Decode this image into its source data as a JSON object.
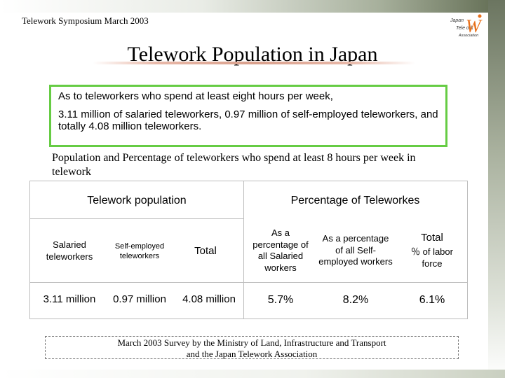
{
  "header": {
    "event": "Telework  Symposium  March 2003"
  },
  "logo": {
    "line1": "Japan",
    "line2": "Tele   ork",
    "line3": "Association",
    "letter": "W"
  },
  "title": "Telework Population in Japan",
  "summary": {
    "line1": "As to teleworkers who spend at least eight hours per week,",
    "line2": "3.11 million of salaried teleworkers, 0.97 million of self-employed teleworkers, and totally 4.08 million teleworkers."
  },
  "subtitle": "Population and Percentage of teleworkers who spend at least 8 hours per week in telework",
  "table": {
    "group_headers": [
      "Telework population",
      "Percentage of Teleworkes"
    ],
    "columns": [
      "Salaried teleworkers",
      "Self-employed teleworkers",
      "Total",
      "As a percentage of all Salaried workers",
      "As a percentage of all Self-employed workers",
      "Total"
    ],
    "total_pct_sub": "％ of labor force",
    "values": [
      "3.11 million",
      "0.97 million",
      "4.08 million",
      "5.7%",
      "8.2%",
      "6.1%"
    ]
  },
  "note": {
    "line1": "March 2003  Survey by the  Ministry of Land, Infrastructure and Transport",
    "line2": "and the Japan Telework Association"
  },
  "colors": {
    "summary_border": "#66cc44",
    "logo_accent": "#e8701a"
  }
}
